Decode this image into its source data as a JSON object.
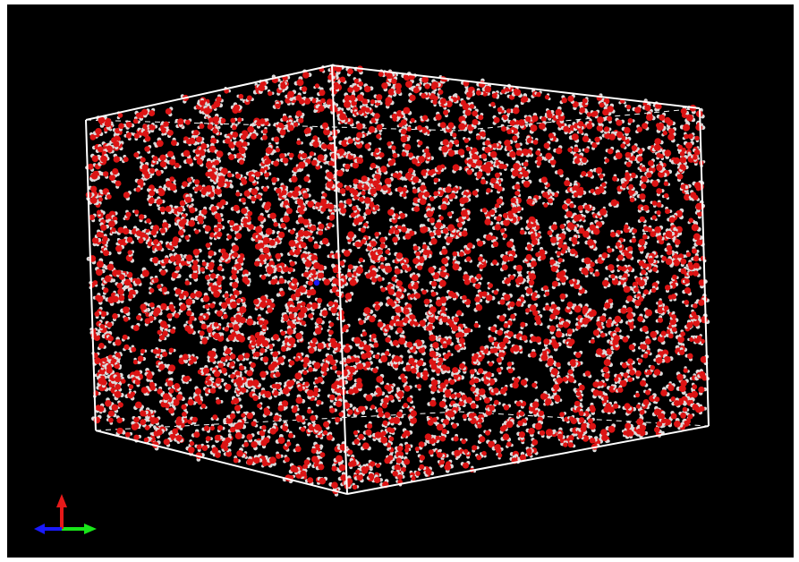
{
  "viewer": {
    "background_color": "#000000",
    "box_color": "#ffffff"
  },
  "atoms": {
    "oxygen_color": "#dc1414",
    "hydrogen_color": "#dcdcdc",
    "nitrogen_color": "#1a1aff",
    "oxygen_icon": "oxygen-atom-sphere",
    "hydrogen_icon": "hydrogen-atom-sphere",
    "nitrogen_icon": "nitrogen-atom-sphere"
  },
  "axes": {
    "x_color": "#19e619",
    "y_color": "#e61919",
    "z_color": "#1a1aff",
    "icon": "xyz-axes-triad-icon"
  }
}
